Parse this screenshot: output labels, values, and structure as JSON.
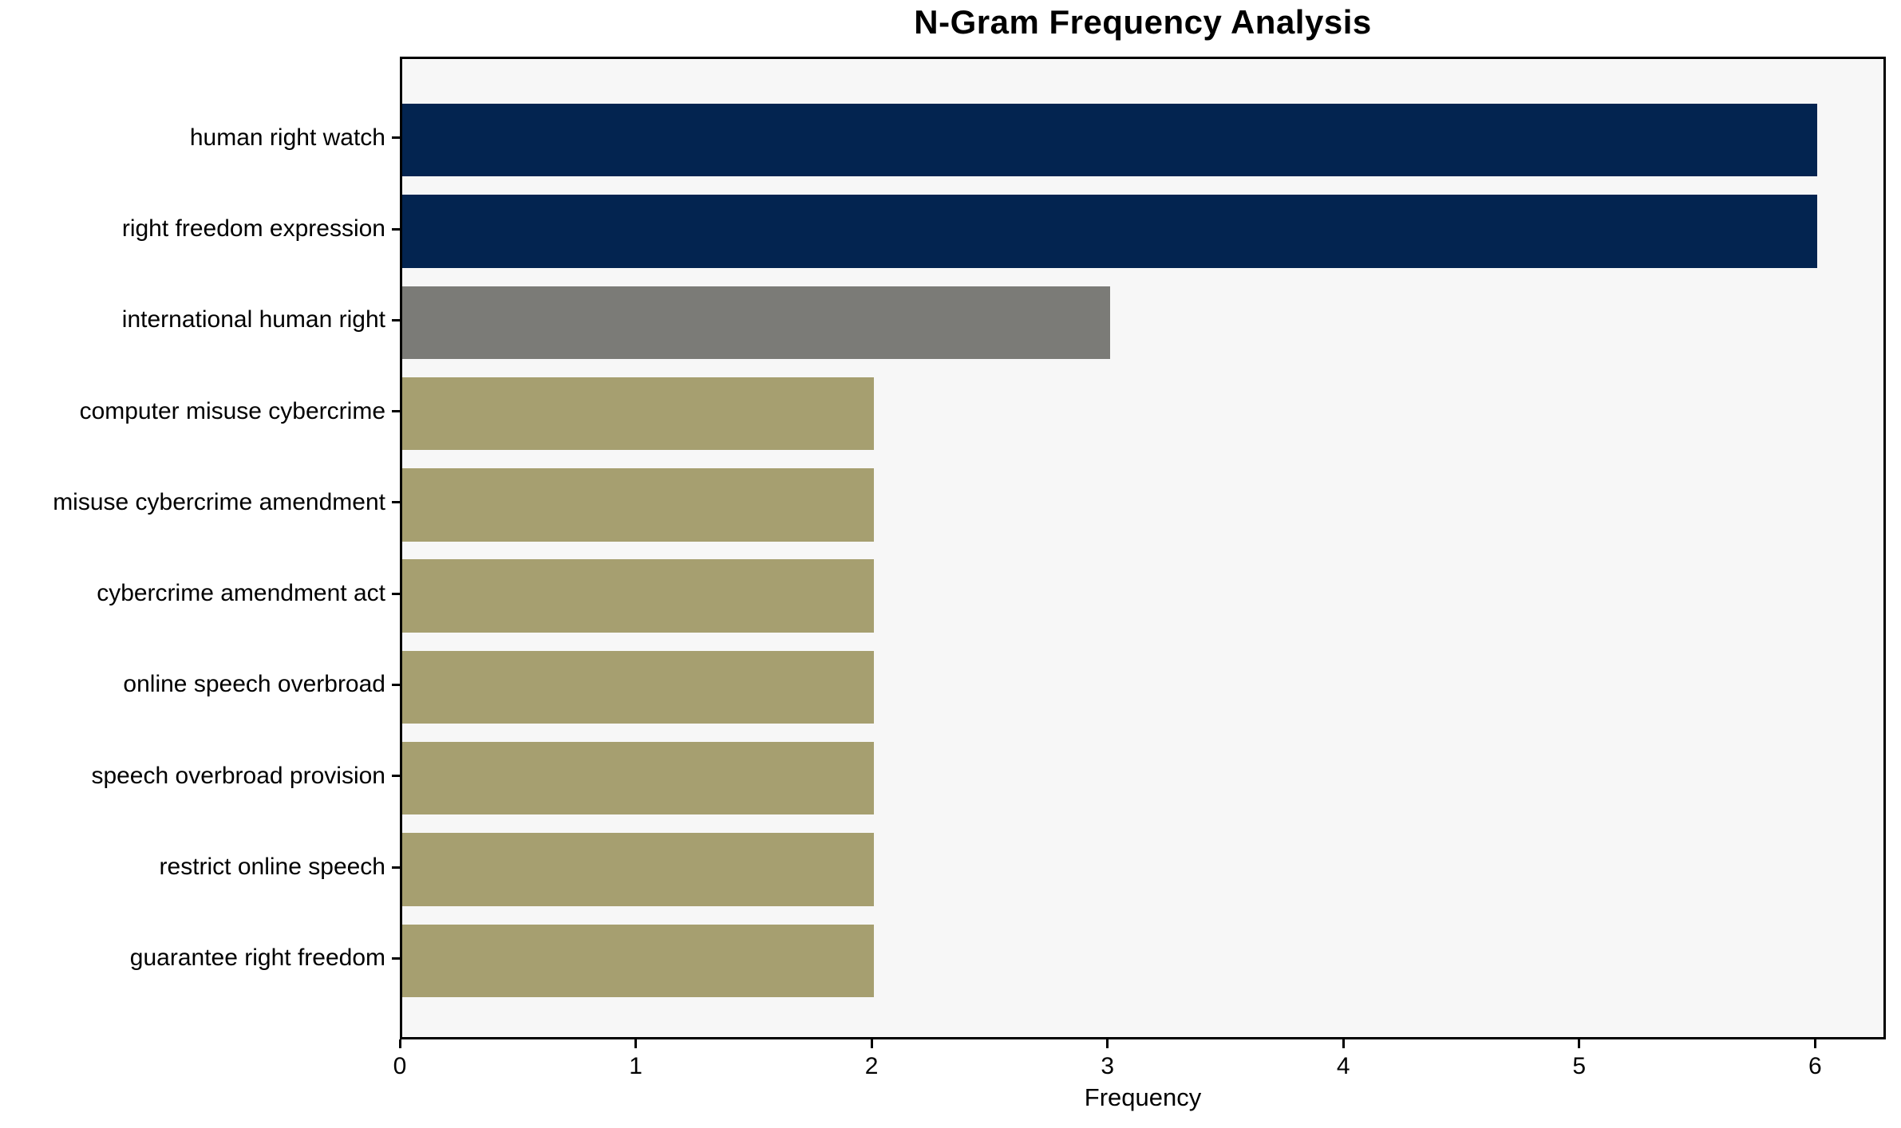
{
  "chart_data": {
    "type": "bar",
    "orientation": "horizontal",
    "title": "N-Gram Frequency Analysis",
    "xlabel": "Frequency",
    "ylabel": "",
    "categories": [
      "human right watch",
      "right freedom expression",
      "international human right",
      "computer misuse cybercrime",
      "misuse cybercrime amendment",
      "cybercrime amendment act",
      "online speech overbroad",
      "speech overbroad provision",
      "restrict online speech",
      "guarantee right freedom"
    ],
    "values": [
      6,
      6,
      3,
      2,
      2,
      2,
      2,
      2,
      2,
      2
    ],
    "bar_colors": [
      "#032450",
      "#032450",
      "#7b7b77",
      "#a69f70",
      "#a69f70",
      "#a69f70",
      "#a69f70",
      "#a69f70",
      "#a69f70",
      "#a69f70"
    ],
    "x_ticks": [
      "0",
      "1",
      "2",
      "3",
      "4",
      "5",
      "6"
    ],
    "x_tick_values": [
      0,
      1,
      2,
      3,
      4,
      5,
      6
    ],
    "xlim": [
      0,
      6.3
    ],
    "grid": false,
    "legend": null,
    "plot_background": "#f7f7f7",
    "figure_background": "#ffffff",
    "axis_color": "#000000",
    "text_color": "#000000"
  }
}
